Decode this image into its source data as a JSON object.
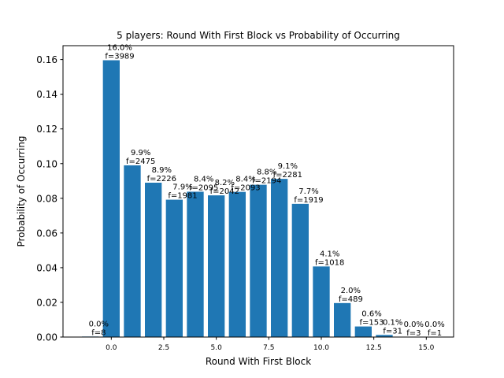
{
  "chart_data": {
    "type": "bar",
    "title": "5 players: Round With First Block vs Probability of Occurring",
    "xlabel": "Round With First Block",
    "ylabel": "Probability of Occurring",
    "bar_color": "#1f77b4",
    "xlim": [
      -2.3,
      16.3
    ],
    "ylim": [
      0,
      0.168
    ],
    "x_ticks": [
      0.0,
      2.5,
      5.0,
      7.5,
      10.0,
      12.5,
      15.0
    ],
    "x_tick_labels": [
      "0.0",
      "2.5",
      "5.0",
      "7.5",
      "10.0",
      "12.5",
      "15.0"
    ],
    "y_ticks": [
      0.0,
      0.02,
      0.04,
      0.06,
      0.08,
      0.1,
      0.12,
      0.14,
      0.16
    ],
    "y_tick_labels": [
      "0.00",
      "0.02",
      "0.04",
      "0.06",
      "0.08",
      "0.10",
      "0.12",
      "0.14",
      "0.16"
    ],
    "grid": false,
    "bars": [
      {
        "x": -1,
        "value": 0.0003,
        "pct": "0.0%",
        "freq": "f=8"
      },
      {
        "x": 0,
        "value": 0.1596,
        "pct": "16.0%",
        "freq": "f=3989"
      },
      {
        "x": 1,
        "value": 0.099,
        "pct": "9.9%",
        "freq": "f=2475"
      },
      {
        "x": 2,
        "value": 0.089,
        "pct": "8.9%",
        "freq": "f=2226"
      },
      {
        "x": 3,
        "value": 0.0792,
        "pct": "7.9%",
        "freq": "f=1981"
      },
      {
        "x": 4,
        "value": 0.0838,
        "pct": "8.4%",
        "freq": "f=2095"
      },
      {
        "x": 5,
        "value": 0.0817,
        "pct": "8.2%",
        "freq": "f=2042"
      },
      {
        "x": 6,
        "value": 0.0837,
        "pct": "8.4%",
        "freq": "f=2093"
      },
      {
        "x": 7,
        "value": 0.0878,
        "pct": "8.8%",
        "freq": "f=2194"
      },
      {
        "x": 8,
        "value": 0.0912,
        "pct": "9.1%",
        "freq": "f=2281"
      },
      {
        "x": 9,
        "value": 0.0768,
        "pct": "7.7%",
        "freq": "f=1919"
      },
      {
        "x": 10,
        "value": 0.0407,
        "pct": "4.1%",
        "freq": "f=1018"
      },
      {
        "x": 11,
        "value": 0.0196,
        "pct": "2.0%",
        "freq": "f=489"
      },
      {
        "x": 12,
        "value": 0.0061,
        "pct": "0.6%",
        "freq": "f=153"
      },
      {
        "x": 13,
        "value": 0.0012,
        "pct": "0.1%",
        "freq": "f=31"
      },
      {
        "x": 14,
        "value": 0.0001,
        "pct": "0.0%",
        "freq": "f=3"
      },
      {
        "x": 15,
        "value": 4e-05,
        "pct": "0.0%",
        "freq": "f=1"
      }
    ]
  }
}
